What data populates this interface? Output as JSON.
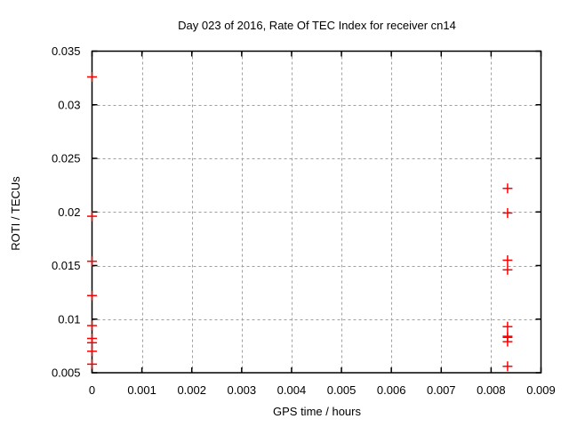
{
  "chart_data": {
    "type": "scatter",
    "title": "Day 023 of 2016, Rate Of TEC Index for receiver cn14",
    "xlabel": "GPS time / hours",
    "ylabel": "ROTI / TECUs",
    "xlim": [
      0,
      0.009
    ],
    "ylim": [
      0.005,
      0.035
    ],
    "xtick_labels": [
      "0",
      "0.001",
      "0.002",
      "0.003",
      "0.004",
      "0.005",
      "0.006",
      "0.007",
      "0.008",
      "0.009"
    ],
    "ytick_labels": [
      "0.005",
      "0.01",
      "0.015",
      "0.02",
      "0.025",
      "0.03",
      "0.035"
    ],
    "grid": true,
    "legend": "none",
    "marker": "plus",
    "colors": {
      "marker": "#ff0000",
      "axis": "#000000",
      "grid": "#9f9f9f",
      "background": "#ffffff",
      "text": "#000000"
    },
    "series": [
      {
        "name": "ROTI",
        "points": [
          [
            0,
            0.0326
          ],
          [
            0,
            0.0196
          ],
          [
            0,
            0.0154
          ],
          [
            0,
            0.0122
          ],
          [
            0,
            0.0094
          ],
          [
            0,
            0.0082
          ],
          [
            0,
            0.0078
          ],
          [
            0,
            0.007
          ],
          [
            0,
            0.0058
          ],
          [
            0.00833,
            0.0222
          ],
          [
            0.00833,
            0.0199
          ],
          [
            0.00833,
            0.0155
          ],
          [
            0.00833,
            0.0146
          ],
          [
            0.00833,
            0.0093
          ],
          [
            0.00833,
            0.0084
          ],
          [
            0.00833,
            0.0083
          ],
          [
            0.00833,
            0.0079
          ],
          [
            0.00833,
            0.0056
          ]
        ]
      }
    ]
  }
}
